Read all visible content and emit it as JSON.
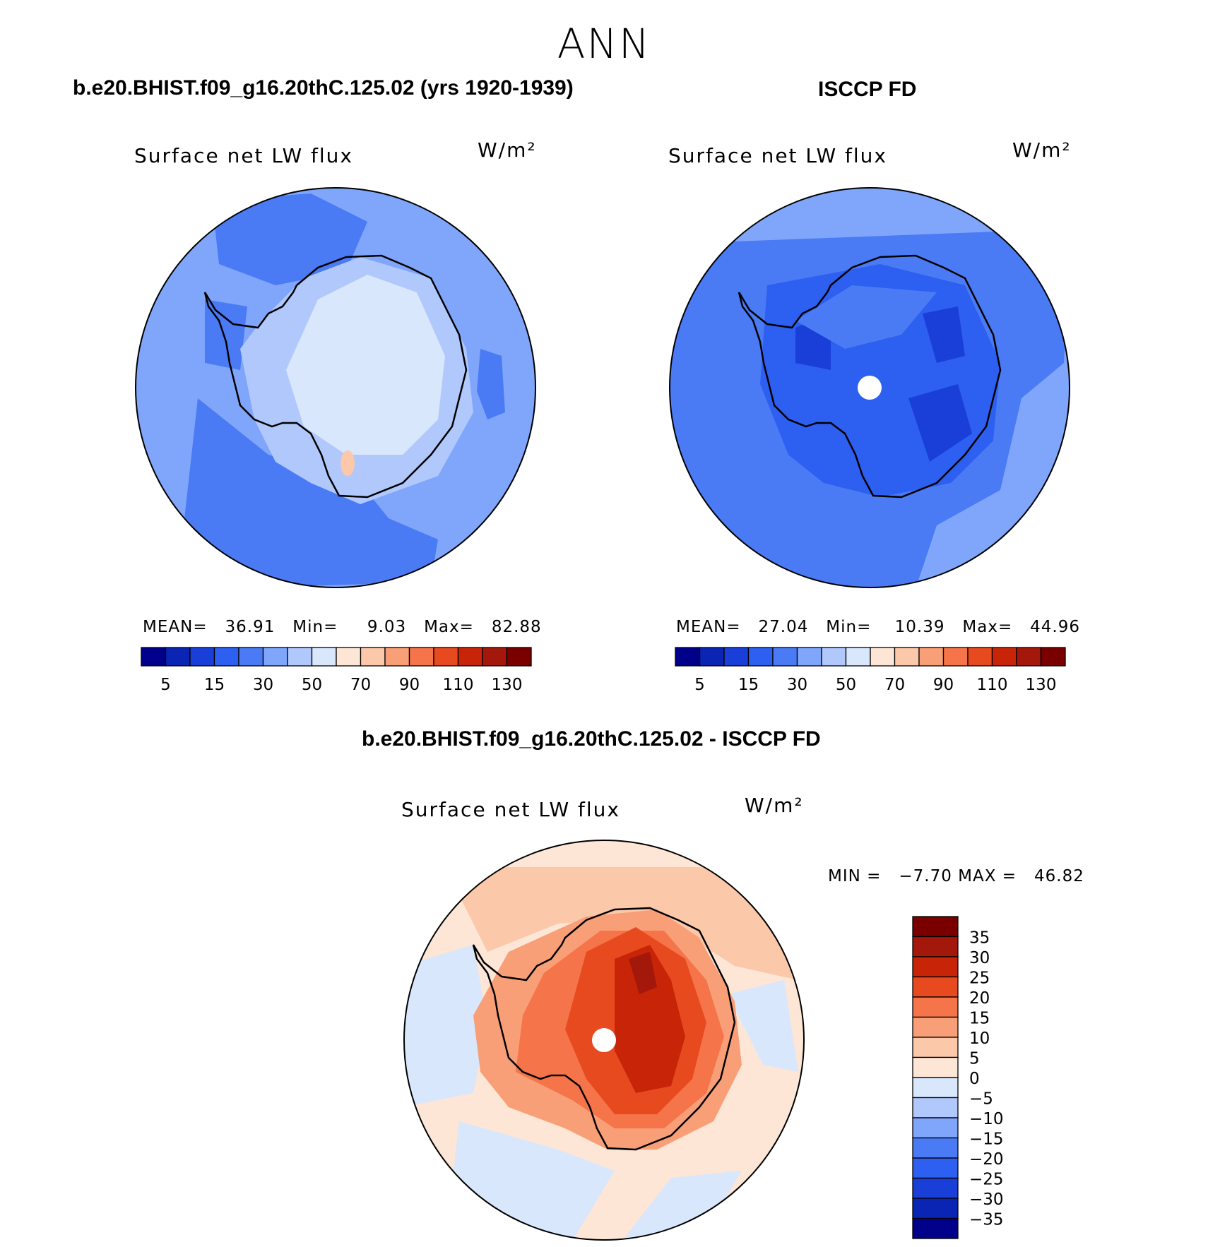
{
  "page_title": "ANN",
  "panels": [
    {
      "title": "b.e20.BHIST.f09_g16.20thC.125.02 (yrs 1920-1939)",
      "variable": "Surface net LW flux",
      "units": "W/m²",
      "stats": "MEAN=   36.91   Min=     9.03   Max=   82.88",
      "mean": 36.91,
      "min": 9.03,
      "max": 82.88
    },
    {
      "title": "ISCCP FD",
      "variable": "Surface net LW flux",
      "units": "W/m²",
      "stats": "MEAN=   27.04   Min=    10.39   Max=   44.96",
      "mean": 27.04,
      "min": 10.39,
      "max": 44.96
    },
    {
      "title": "b.e20.BHIST.f09_g16.20thC.125.02 - ISCCP FD",
      "variable": "Surface net LW flux",
      "units": "W/m²",
      "stats": "MIN =   −7.70 MAX =   46.82",
      "min": -7.7,
      "max": 46.82
    }
  ],
  "colorbar_abs": {
    "colors": [
      "#00008b",
      "#0a24b4",
      "#1a3fd8",
      "#2d5ff0",
      "#4a7bf5",
      "#7fa6fa",
      "#b0c8fc",
      "#d8e7fc",
      "#fde6d6",
      "#fbc8aa",
      "#f99f77",
      "#f57449",
      "#e84a20",
      "#c82508",
      "#a3180a",
      "#7a0000"
    ],
    "labels": [
      "5",
      "15",
      "30",
      "50",
      "70",
      "90",
      "110",
      "130"
    ]
  },
  "colorbar_diff": {
    "colors": [
      "#00008b",
      "#0a24b4",
      "#1a3fd8",
      "#2d5ff0",
      "#4a7bf5",
      "#7fa6fa",
      "#b0c8fc",
      "#d8e7fc",
      "#fde6d6",
      "#fbc8aa",
      "#f99f77",
      "#f57449",
      "#e84a20",
      "#c82508",
      "#a3180a",
      "#7a0000"
    ],
    "labels": [
      "35",
      "30",
      "25",
      "20",
      "15",
      "10",
      "5",
      "0",
      "−5",
      "−10",
      "−15",
      "−20",
      "−25",
      "−30",
      "−35"
    ]
  }
}
